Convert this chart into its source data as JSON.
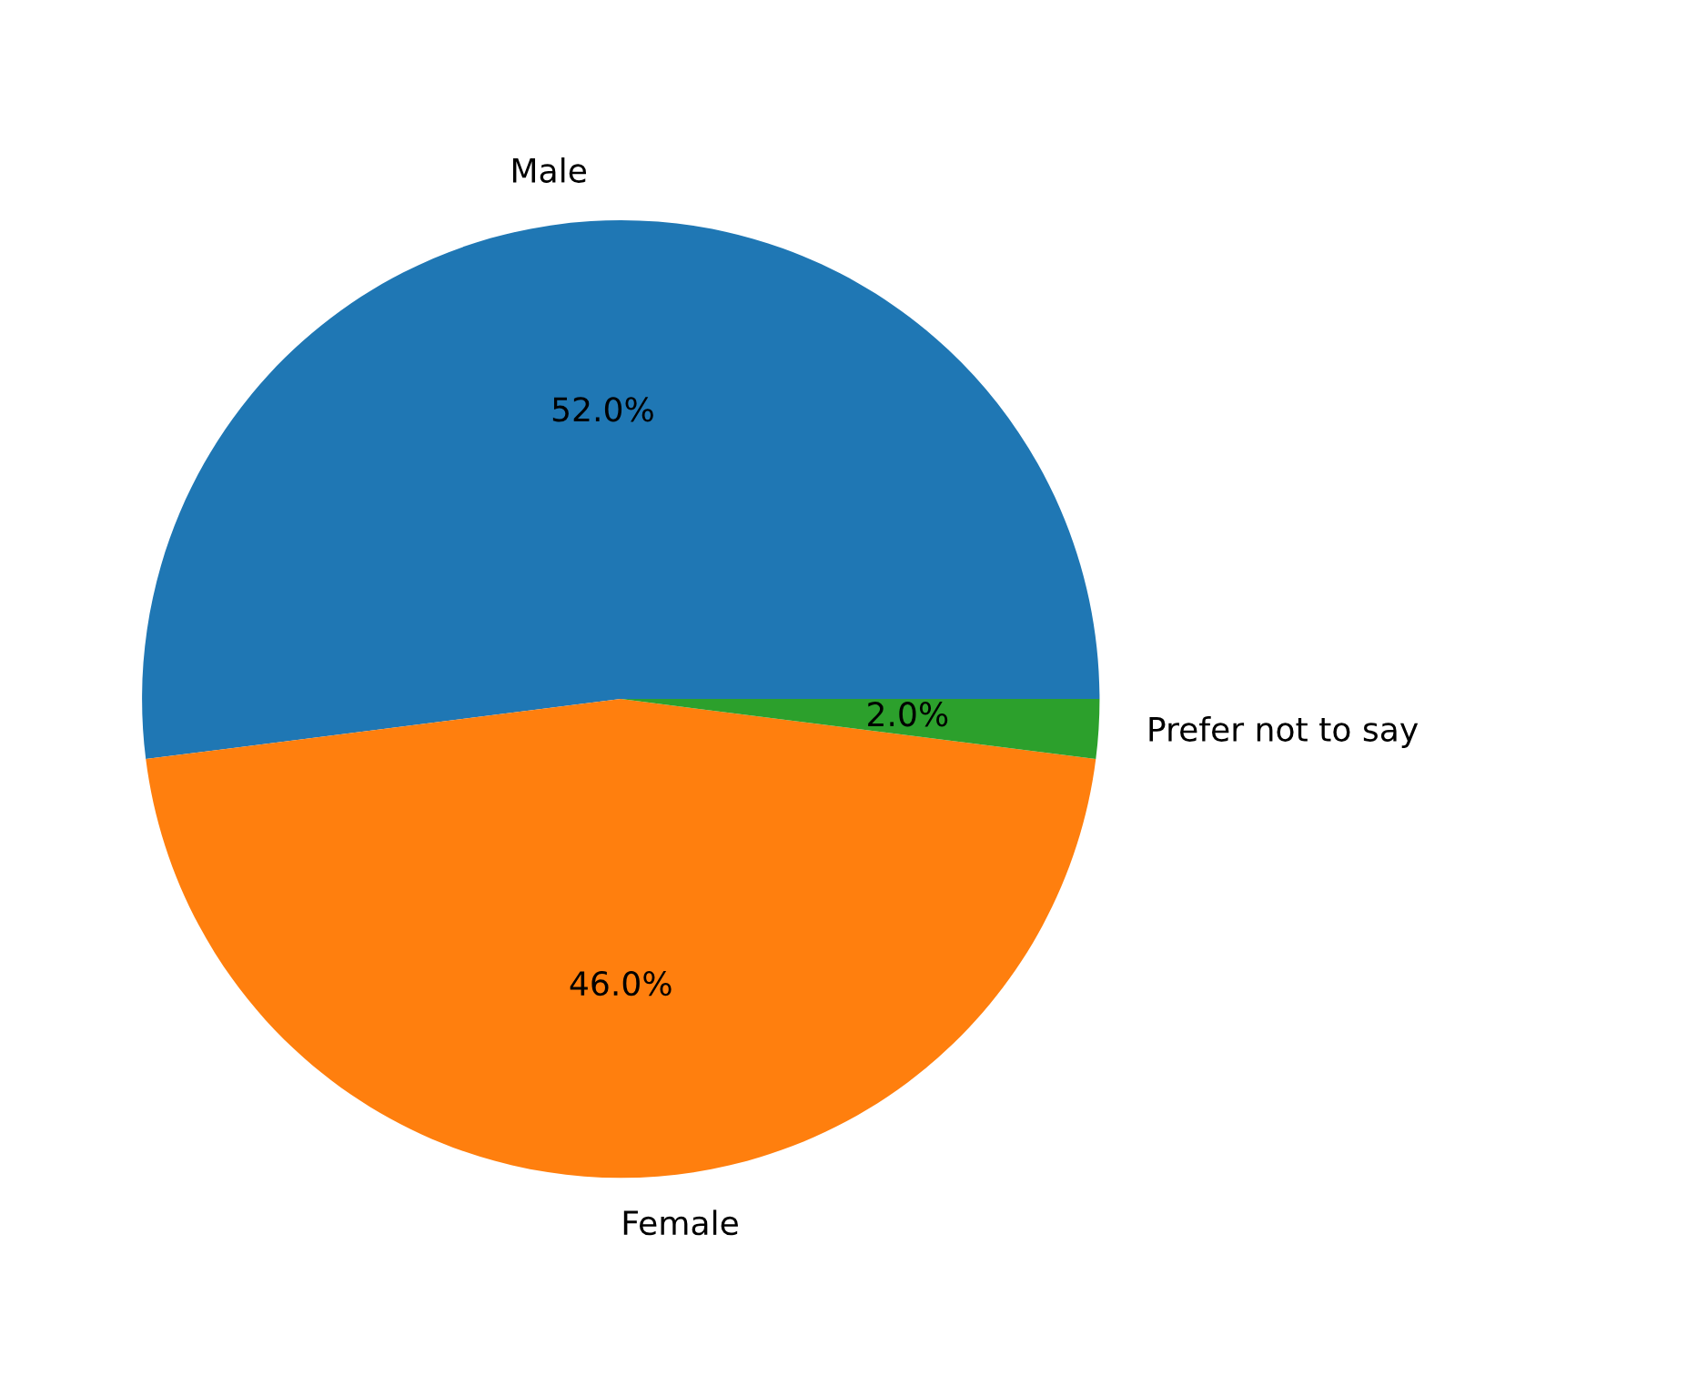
{
  "chart_data": {
    "type": "pie",
    "categories": [
      "Male",
      "Female",
      "Prefer not to say"
    ],
    "values": [
      52,
      46,
      2
    ],
    "colors": [
      "#1f77b4",
      "#ff7f0e",
      "#2ca02c"
    ],
    "value_labels": [
      "52.0%",
      "46.0%",
      "2.0%"
    ]
  }
}
